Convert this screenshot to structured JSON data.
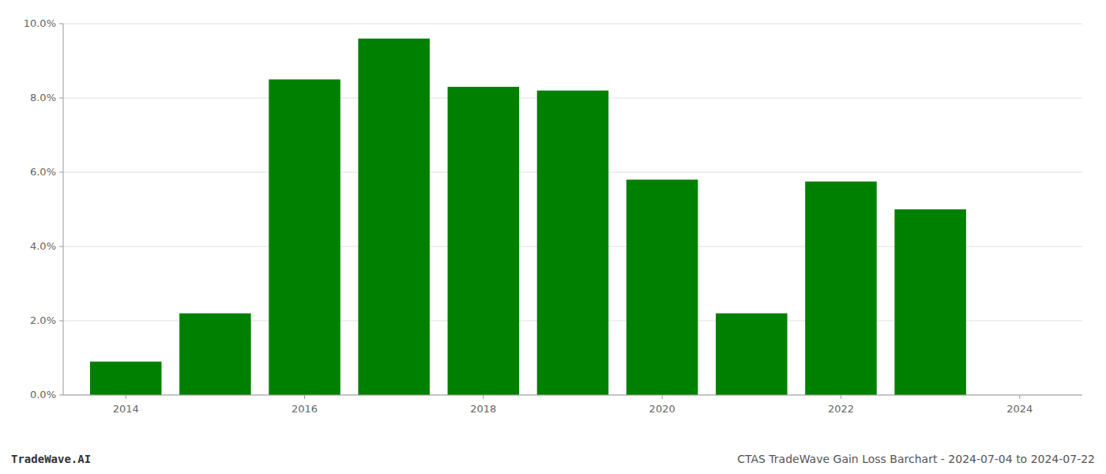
{
  "chart_data": {
    "type": "bar",
    "x": [
      2014,
      2015,
      2016,
      2017,
      2018,
      2019,
      2020,
      2021,
      2022,
      2023
    ],
    "values": [
      0.009,
      0.022,
      0.085,
      0.096,
      0.083,
      0.082,
      0.058,
      0.022,
      0.0575,
      0.05
    ],
    "color": "#008000",
    "xlim": [
      2013.3,
      2024.7
    ],
    "xticks": [
      2014,
      2016,
      2018,
      2020,
      2022,
      2024
    ],
    "ylim": [
      0,
      0.1
    ],
    "yticks": [
      {
        "value": 0.0,
        "label": "0.0%"
      },
      {
        "value": 0.02,
        "label": "2.0%"
      },
      {
        "value": 0.04,
        "label": "4.0%"
      },
      {
        "value": 0.06,
        "label": "6.0%"
      },
      {
        "value": 0.08,
        "label": "8.0%"
      },
      {
        "value": 0.1,
        "label": "10.0%"
      }
    ],
    "grid": true,
    "annotations": [
      "TradeWave.AI",
      "CTAS TradeWave Gain Loss Barchart - 2024-07-04 to 2024-07-22"
    ]
  }
}
